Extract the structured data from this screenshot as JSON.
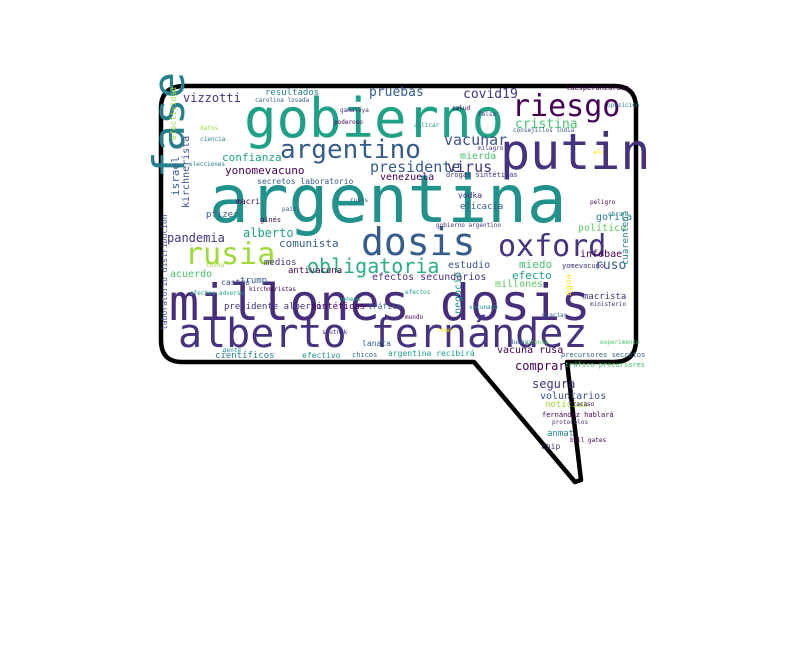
{
  "palette": {
    "bubble_fill": "#ffffff",
    "bubble_stroke": "#000000",
    "colors": [
      "#46327e",
      "#365c8d",
      "#277f8e",
      "#1fa187",
      "#4ac16d",
      "#a0da39",
      "#fde725",
      "#440154",
      "#3b528b",
      "#21918c",
      "#5ec962"
    ]
  },
  "words": [
    {
      "text": "argentina",
      "color": "#21918c"
    },
    {
      "text": "millones dosis",
      "color": "#472d7b"
    },
    {
      "text": "alberto fernández",
      "color": "#46327e"
    },
    {
      "text": "gobierno",
      "color": "#1fa187"
    },
    {
      "text": "putin",
      "color": "#46327e"
    },
    {
      "text": "fase",
      "color": "#277f8e"
    },
    {
      "text": "dosis",
      "color": "#365c8d"
    },
    {
      "text": "oxford",
      "color": "#46327e"
    },
    {
      "text": "rusia",
      "color": "#a0da39"
    },
    {
      "text": "riesgo",
      "color": "#440154"
    },
    {
      "text": "argentino",
      "color": "#365c8d"
    },
    {
      "text": "obligatoria",
      "color": "#2ab07f"
    },
    {
      "text": "presidente",
      "color": "#365c8d"
    },
    {
      "text": "virus",
      "color": "#46327e"
    },
    {
      "text": "vacunar",
      "color": "#3b528b"
    },
    {
      "text": "cristina",
      "color": "#4ac16d"
    },
    {
      "text": "covid19",
      "color": "#46327e"
    },
    {
      "text": "pruebas",
      "color": "#365c8d"
    },
    {
      "text": "vizzotti",
      "color": "#46327e"
    },
    {
      "text": "resultados",
      "color": "#277f8e"
    },
    {
      "text": "confianza",
      "color": "#1fa187"
    },
    {
      "text": "yonomevacuno",
      "color": "#440154"
    },
    {
      "text": "israel",
      "color": "#365c8d"
    },
    {
      "text": "kirchnerista",
      "color": "#3b528b"
    },
    {
      "text": "pandemia",
      "color": "#46327e"
    },
    {
      "text": "alberto",
      "color": "#1fa187"
    },
    {
      "text": "comunista",
      "color": "#365c8d"
    },
    {
      "text": "ruso",
      "color": "#365c8d"
    },
    {
      "text": "efecto",
      "color": "#1fa187"
    },
    {
      "text": "miedo",
      "color": "#4ac16d"
    },
    {
      "text": "estudio",
      "color": "#3b528b"
    },
    {
      "text": "acuerdo",
      "color": "#4ac16d"
    },
    {
      "text": "gorila",
      "color": "#277f8e"
    },
    {
      "text": "político",
      "color": "#5ec962"
    },
    {
      "text": "cuarentena",
      "color": "#277f8e"
    },
    {
      "text": "mierda",
      "color": "#4ac16d"
    },
    {
      "text": "infobae",
      "color": "#440154"
    },
    {
      "text": "eficacia",
      "color": "#365c8d"
    },
    {
      "text": "vodka",
      "color": "#46327e"
    },
    {
      "text": "venezuela",
      "color": "#440154"
    },
    {
      "text": "macri",
      "color": "#440154"
    },
    {
      "text": "pfizer",
      "color": "#365c8d"
    },
    {
      "text": "efectos secundarios",
      "color": "#46327e"
    },
    {
      "text": "negocio",
      "color": "#21918c"
    },
    {
      "text": "millones",
      "color": "#5ec962"
    },
    {
      "text": "segura",
      "color": "#46327e"
    },
    {
      "text": "comprar",
      "color": "#440154"
    },
    {
      "text": "voluntarios",
      "color": "#3b528b"
    },
    {
      "text": "noticias",
      "color": "#a0da39"
    },
    {
      "text": "anmat",
      "color": "#277f8e"
    },
    {
      "text": "chip",
      "color": "#46327e"
    },
    {
      "text": "vacuna rusa",
      "color": "#440154"
    },
    {
      "text": "argentina recibirá",
      "color": "#1fa187"
    },
    {
      "text": "científicos",
      "color": "#277f8e"
    },
    {
      "text": "efectivo",
      "color": "#21918c"
    },
    {
      "text": "chicos",
      "color": "#365c8d"
    },
    {
      "text": "lanata",
      "color": "#365c8d"
    },
    {
      "text": "presidente alberto",
      "color": "#46327e"
    },
    {
      "text": "sintéticas",
      "color": "#440154"
    },
    {
      "text": "tráfico",
      "color": "#365c8d"
    },
    {
      "text": "antivacuna",
      "color": "#440154"
    },
    {
      "text": "trump",
      "color": "#365c8d"
    },
    {
      "text": "medios",
      "color": "#46327e"
    },
    {
      "text": "castro",
      "color": "#3b528b"
    },
    {
      "text": "secretos laboratorio",
      "color": "#365c8d"
    },
    {
      "text": "drogas sintéticas",
      "color": "#46327e"
    },
    {
      "text": "macrista",
      "color": "#46327e"
    },
    {
      "text": "agua",
      "color": "#fde725"
    },
    {
      "text": "fernández hablará",
      "color": "#440154"
    },
    {
      "text": "efectividad",
      "color": "#a0da39"
    },
    {
      "text": "laesperanzarusa",
      "color": "#440154"
    },
    {
      "text": "tráfico precursores",
      "color": "#4ac16d"
    },
    {
      "text": "precursores secretos",
      "color": "#365c8d"
    },
    {
      "text": "yomevacuno",
      "color": "#46327e"
    },
    {
      "text": "laboratorio distribución",
      "color": "#3b528b"
    },
    {
      "text": "ginés",
      "color": "#440154"
    },
    {
      "text": "efectos adverso",
      "color": "#1fa187"
    },
    {
      "text": "carolina losada",
      "color": "#365c8d"
    },
    {
      "text": "elecciones",
      "color": "#277f8e"
    },
    {
      "text": "kirchneristas",
      "color": "#440154"
    },
    {
      "text": "vacunado",
      "color": "#21918c"
    },
    {
      "text": "protocolos",
      "color": "#46327e"
    },
    {
      "text": "gobierno argentino",
      "color": "#46327e"
    },
    {
      "text": "consejillos india",
      "color": "#365c8d"
    },
    {
      "text": "efectos",
      "color": "#1fa187"
    },
    {
      "text": "poderoso",
      "color": "#440154"
    },
    {
      "text": "ministerio",
      "color": "#46327e"
    },
    {
      "text": "obra",
      "color": "#277f8e"
    },
    {
      "text": "peligro",
      "color": "#440154"
    },
    {
      "text": "rusos",
      "color": "#365c8d"
    },
    {
      "text": "datos",
      "color": "#a0da39"
    },
    {
      "text": "salud",
      "color": "#440154"
    },
    {
      "text": "gente",
      "color": "#21918c"
    },
    {
      "text": "sputnik",
      "color": "#46327e"
    },
    {
      "text": "año",
      "color": "#fde725"
    },
    {
      "text": "aplicar",
      "color": "#21918c"
    },
    {
      "text": "prensa",
      "color": "#5ec962"
    },
    {
      "text": "milagro",
      "color": "#46327e"
    },
    {
      "text": "país",
      "color": "#365c8d"
    },
    {
      "text": "mundo",
      "color": "#440154"
    },
    {
      "text": "veneno",
      "color": "#1fa187"
    },
    {
      "text": "falso",
      "color": "#46327e"
    },
    {
      "text": "gracias",
      "color": "#365c8d"
    },
    {
      "text": "temor",
      "color": "#fde725"
    },
    {
      "text": "bill gates",
      "color": "#440154"
    },
    {
      "text": "oposición",
      "color": "#277f8e"
    },
    {
      "text": "china",
      "color": "#a0da39"
    },
    {
      "text": "gamaleya",
      "color": "#46327e"
    },
    {
      "text": "dudas",
      "color": "#365c8d"
    },
    {
      "text": "fracaso",
      "color": "#440154"
    },
    {
      "text": "experimento",
      "color": "#4ac16d"
    },
    {
      "text": "ciencia",
      "color": "#277f8e"
    }
  ]
}
